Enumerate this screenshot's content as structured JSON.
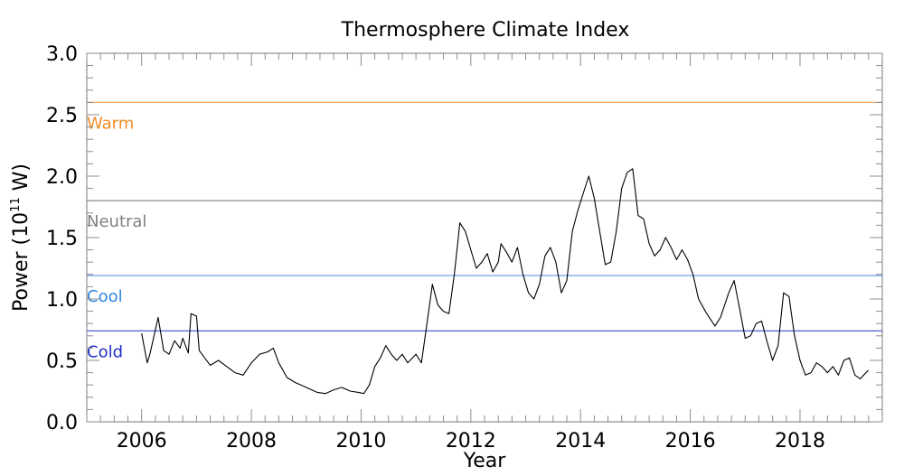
{
  "chart_data": {
    "type": "line",
    "title": "Thermosphere Climate Index",
    "xlabel": "Year",
    "ylabel": "Power (10^11 W)",
    "ylabel_base": "Power (10",
    "ylabel_exp": "11",
    "ylabel_unit": " W)",
    "xlim": [
      2005.0,
      2019.5
    ],
    "ylim": [
      0.0,
      3.0
    ],
    "x_ticks": [
      2006,
      2008,
      2010,
      2012,
      2014,
      2016,
      2018
    ],
    "x_tick_labels": [
      "2006",
      "2008",
      "2010",
      "2012",
      "2014",
      "2016",
      "2018"
    ],
    "y_ticks": [
      0.0,
      0.5,
      1.0,
      1.5,
      2.0,
      2.5,
      3.0
    ],
    "y_tick_labels": [
      "0.0",
      "0.5",
      "1.0",
      "1.5",
      "2.0",
      "2.5",
      "3.0"
    ],
    "grid": false,
    "thresholds": [
      {
        "label": "Warm",
        "value": 2.6,
        "color": "#f4a460",
        "text_color": "#f08c28"
      },
      {
        "label": "Neutral",
        "value": 1.8,
        "color": "#808080",
        "text_color": "#808080"
      },
      {
        "label": "Cool",
        "value": 1.19,
        "color": "#6fa0e8",
        "text_color": "#2f86e0"
      },
      {
        "label": "Cold",
        "value": 0.74,
        "color": "#4a5fd8",
        "text_color": "#1f2fc8"
      }
    ],
    "series": [
      {
        "color": "#000000",
        "x": [
          2006.0,
          2006.1,
          2006.15,
          2006.25,
          2006.3,
          2006.35,
          2006.4,
          2006.5,
          2006.6,
          2006.7,
          2006.75,
          2006.85,
          2006.9,
          2007.0,
          2007.05,
          2007.15,
          2007.25,
          2007.4,
          2007.55,
          2007.7,
          2007.85,
          2008.0,
          2008.15,
          2008.3,
          2008.4,
          2008.5,
          2008.65,
          2008.8,
          2009.0,
          2009.2,
          2009.35,
          2009.5,
          2009.65,
          2009.8,
          2009.95,
          2010.05,
          2010.15,
          2010.25,
          2010.35,
          2010.45,
          2010.55,
          2010.65,
          2010.75,
          2010.85,
          2011.0,
          2011.1,
          2011.2,
          2011.3,
          2011.4,
          2011.5,
          2011.6,
          2011.7,
          2011.8,
          2011.9,
          2012.0,
          2012.1,
          2012.2,
          2012.3,
          2012.4,
          2012.5,
          2012.55,
          2012.65,
          2012.75,
          2012.85,
          2012.95,
          2013.05,
          2013.15,
          2013.25,
          2013.35,
          2013.45,
          2013.55,
          2013.65,
          2013.75,
          2013.85,
          2013.95,
          2014.05,
          2014.15,
          2014.25,
          2014.35,
          2014.45,
          2014.55,
          2014.65,
          2014.75,
          2014.85,
          2014.95,
          2015.05,
          2015.15,
          2015.25,
          2015.35,
          2015.45,
          2015.55,
          2015.65,
          2015.75,
          2015.85,
          2015.95,
          2016.05,
          2016.15,
          2016.3,
          2016.45,
          2016.55,
          2016.7,
          2016.8,
          2016.9,
          2017.0,
          2017.1,
          2017.2,
          2017.3,
          2017.4,
          2017.5,
          2017.6,
          2017.7,
          2017.8,
          2017.9,
          2018.0,
          2018.1,
          2018.2,
          2018.3,
          2018.4,
          2018.5,
          2018.6,
          2018.7,
          2018.8,
          2018.9,
          2019.0,
          2019.1,
          2019.2,
          2019.25
        ],
        "y": [
          0.72,
          0.48,
          0.55,
          0.75,
          0.85,
          0.72,
          0.58,
          0.55,
          0.66,
          0.6,
          0.68,
          0.56,
          0.88,
          0.86,
          0.58,
          0.52,
          0.46,
          0.5,
          0.45,
          0.4,
          0.38,
          0.48,
          0.55,
          0.57,
          0.6,
          0.48,
          0.36,
          0.32,
          0.28,
          0.24,
          0.23,
          0.26,
          0.28,
          0.25,
          0.24,
          0.23,
          0.3,
          0.45,
          0.52,
          0.62,
          0.55,
          0.5,
          0.55,
          0.48,
          0.55,
          0.48,
          0.8,
          1.12,
          0.95,
          0.9,
          0.88,
          1.2,
          1.62,
          1.55,
          1.4,
          1.25,
          1.3,
          1.37,
          1.22,
          1.3,
          1.45,
          1.38,
          1.3,
          1.42,
          1.2,
          1.05,
          1.0,
          1.12,
          1.35,
          1.42,
          1.3,
          1.05,
          1.15,
          1.55,
          1.72,
          1.86,
          2.0,
          1.82,
          1.55,
          1.28,
          1.3,
          1.55,
          1.9,
          2.03,
          2.06,
          1.68,
          1.65,
          1.45,
          1.35,
          1.4,
          1.5,
          1.42,
          1.32,
          1.4,
          1.32,
          1.2,
          1.0,
          0.88,
          0.78,
          0.85,
          1.05,
          1.15,
          0.92,
          0.68,
          0.7,
          0.8,
          0.82,
          0.65,
          0.5,
          0.62,
          1.05,
          1.02,
          0.7,
          0.5,
          0.38,
          0.4,
          0.48,
          0.45,
          0.4,
          0.45,
          0.38,
          0.5,
          0.52,
          0.38,
          0.35,
          0.4,
          0.42
        ]
      }
    ]
  }
}
